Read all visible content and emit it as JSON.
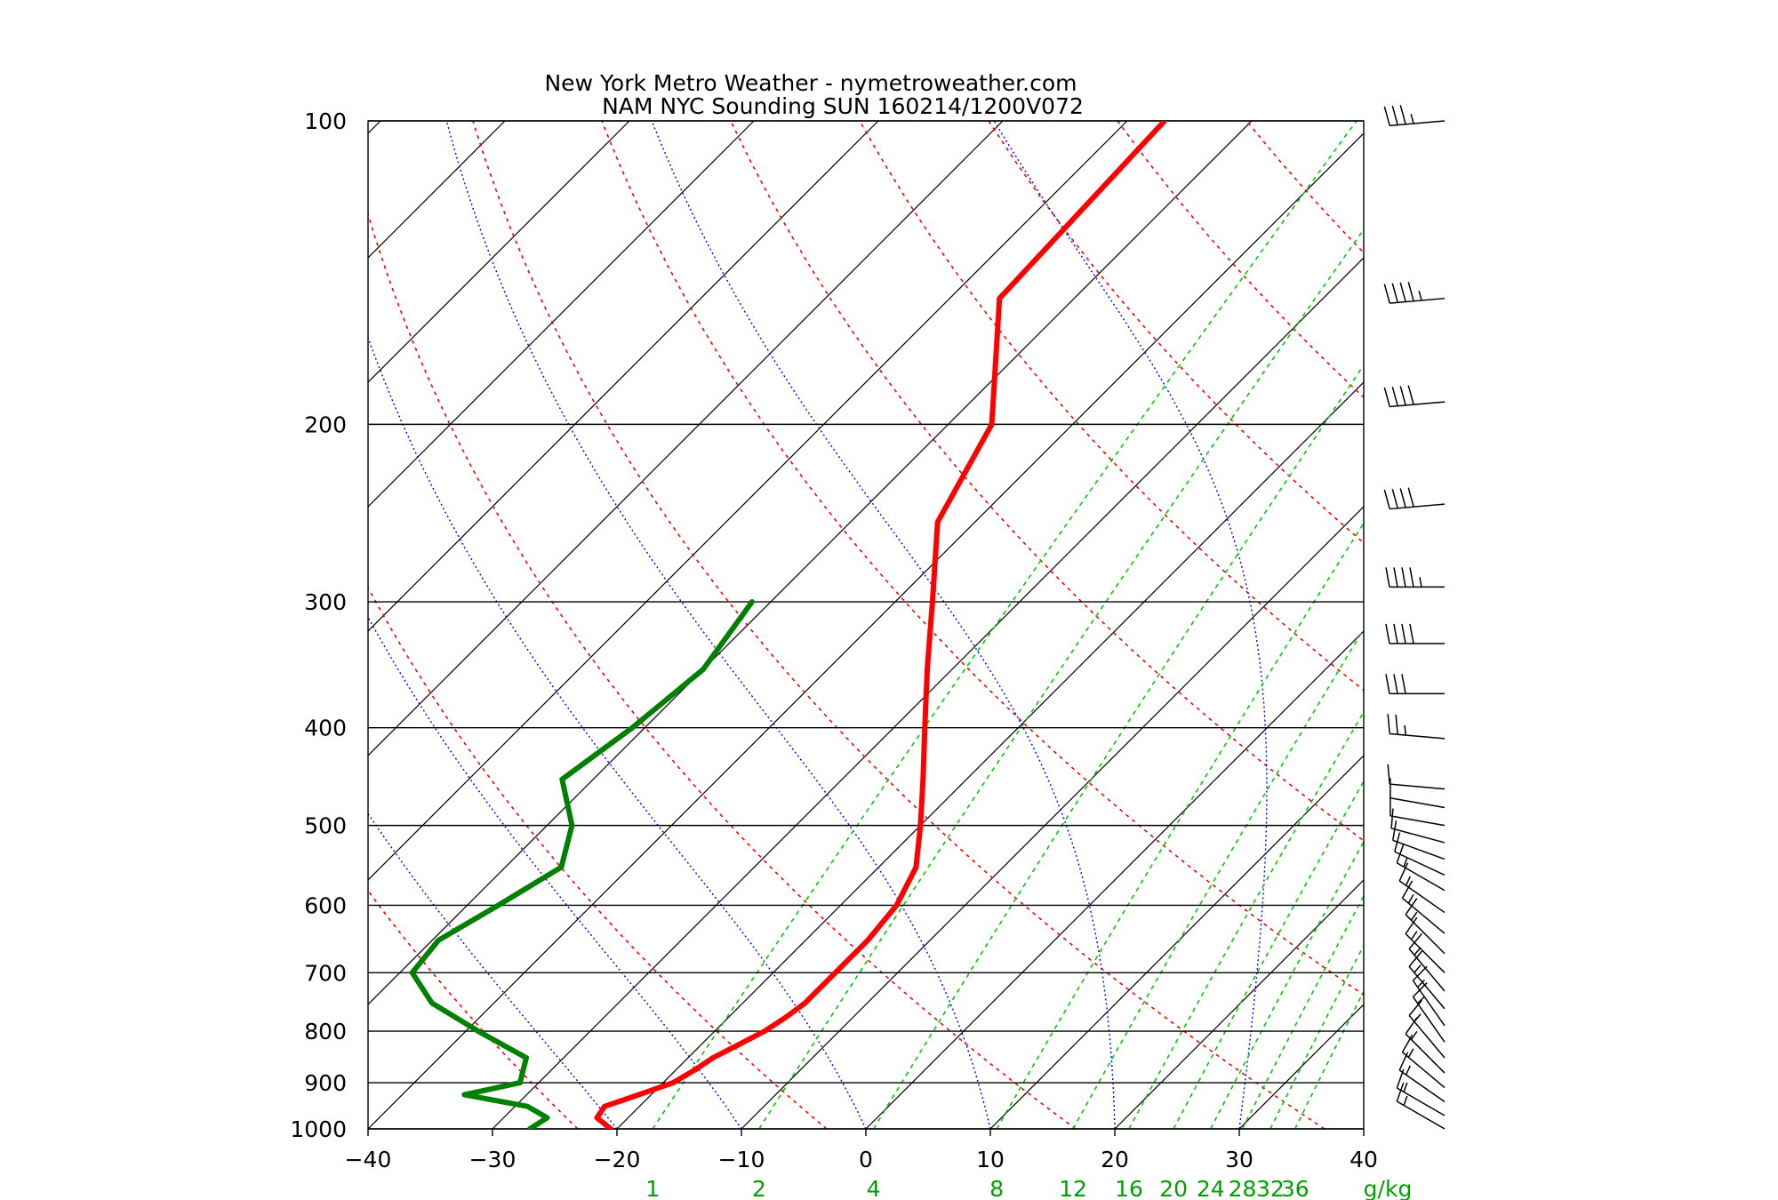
{
  "header": {
    "title": "New York Metro Weather - nymetroweather.com",
    "subtitle": "NAM NYC Sounding  SUN 160214/1200V072"
  },
  "chart_data": {
    "type": "line",
    "chart_kind": "skew-T log-P sounding",
    "x_axis": {
      "units": "°C",
      "range": [
        -40,
        40
      ],
      "ticks": [
        "-40",
        "-30",
        "-20",
        "-10",
        "0",
        "10",
        "20",
        "30",
        "40"
      ]
    },
    "y_axis": {
      "units": "hPa",
      "scale": "log",
      "range": [
        1000,
        100
      ],
      "ticks": [
        "100",
        "200",
        "300",
        "400",
        "500",
        "600",
        "700",
        "800",
        "900",
        "1000"
      ]
    },
    "mixing_ratio_axis": {
      "labels": [
        "1",
        "2",
        "4",
        "8",
        "12",
        "16",
        "20",
        "24",
        "28",
        "32",
        "36"
      ],
      "unit_label": "g/kg",
      "values": [
        1,
        2,
        4,
        8,
        12,
        16,
        20,
        24,
        28,
        32,
        36
      ]
    },
    "isotherm_spacing_c": 10,
    "dry_adiabats_k": [
      250,
      270,
      290,
      310,
      330,
      350,
      370,
      390,
      410,
      430,
      450
    ],
    "moist_adiabats_c": [
      -20,
      -10,
      0,
      10,
      20,
      30
    ],
    "series": [
      {
        "color": "#ff0000",
        "points": [
          {
            "p": 1000,
            "t": -20.5
          },
          {
            "p": 975,
            "t": -22.5
          },
          {
            "p": 950,
            "t": -22.8
          },
          {
            "p": 925,
            "t": -21.0
          },
          {
            "p": 900,
            "t": -19.2
          },
          {
            "p": 875,
            "t": -18.5
          },
          {
            "p": 850,
            "t": -18.0
          },
          {
            "p": 825,
            "t": -17.0
          },
          {
            "p": 800,
            "t": -16.0
          },
          {
            "p": 775,
            "t": -15.4
          },
          {
            "p": 750,
            "t": -15.0
          },
          {
            "p": 700,
            "t": -15.0
          },
          {
            "p": 650,
            "t": -15.0
          },
          {
            "p": 600,
            "t": -15.5
          },
          {
            "p": 550,
            "t": -17.0
          },
          {
            "p": 500,
            "t": -20.0
          },
          {
            "p": 450,
            "t": -23.5
          },
          {
            "p": 400,
            "t": -27.5
          },
          {
            "p": 350,
            "t": -32.0
          },
          {
            "p": 300,
            "t": -37.0
          },
          {
            "p": 250,
            "t": -43.0
          },
          {
            "p": 200,
            "t": -46.5
          },
          {
            "p": 150,
            "t": -56.0
          },
          {
            "p": 100,
            "t": -57.0
          }
        ]
      },
      {
        "color": "#008000",
        "points": [
          {
            "p": 1000,
            "t": -27.0
          },
          {
            "p": 975,
            "t": -26.5
          },
          {
            "p": 950,
            "t": -29.0
          },
          {
            "p": 925,
            "t": -35.0
          },
          {
            "p": 900,
            "t": -31.5
          },
          {
            "p": 850,
            "t": -33.0
          },
          {
            "p": 800,
            "t": -39.0
          },
          {
            "p": 750,
            "t": -45.0
          },
          {
            "p": 700,
            "t": -49.0
          },
          {
            "p": 650,
            "t": -49.5
          },
          {
            "p": 600,
            "t": -47.5
          },
          {
            "p": 550,
            "t": -45.5
          },
          {
            "p": 500,
            "t": -48.0
          },
          {
            "p": 450,
            "t": -52.5
          },
          {
            "p": 400,
            "t": -51.0
          },
          {
            "p": 350,
            "t": -50.0
          },
          {
            "p": 300,
            "t": -51.5
          }
        ]
      }
    ],
    "wind_barbs_kt": [
      {
        "p": 100,
        "dir": 265,
        "spd": 35
      },
      {
        "p": 150,
        "dir": 265,
        "spd": 45
      },
      {
        "p": 190,
        "dir": 265,
        "spd": 40
      },
      {
        "p": 240,
        "dir": 265,
        "spd": 40
      },
      {
        "p": 290,
        "dir": 270,
        "spd": 45
      },
      {
        "p": 330,
        "dir": 270,
        "spd": 40
      },
      {
        "p": 370,
        "dir": 270,
        "spd": 30
      },
      {
        "p": 410,
        "dir": 275,
        "spd": 25
      },
      {
        "p": 460,
        "dir": 275,
        "spd": 10
      },
      {
        "p": 480,
        "dir": 280,
        "spd": 10
      },
      {
        "p": 500,
        "dir": 280,
        "spd": 10
      },
      {
        "p": 520,
        "dir": 285,
        "spd": 10
      },
      {
        "p": 540,
        "dir": 290,
        "spd": 10
      },
      {
        "p": 560,
        "dir": 295,
        "spd": 10
      },
      {
        "p": 580,
        "dir": 300,
        "spd": 15
      },
      {
        "p": 610,
        "dir": 305,
        "spd": 15
      },
      {
        "p": 640,
        "dir": 310,
        "spd": 15
      },
      {
        "p": 670,
        "dir": 315,
        "spd": 15
      },
      {
        "p": 700,
        "dir": 315,
        "spd": 15
      },
      {
        "p": 730,
        "dir": 320,
        "spd": 15
      },
      {
        "p": 760,
        "dir": 320,
        "spd": 15
      },
      {
        "p": 790,
        "dir": 325,
        "spd": 15
      },
      {
        "p": 820,
        "dir": 325,
        "spd": 15
      },
      {
        "p": 850,
        "dir": 320,
        "spd": 15
      },
      {
        "p": 880,
        "dir": 315,
        "spd": 15
      },
      {
        "p": 910,
        "dir": 310,
        "spd": 15
      },
      {
        "p": 940,
        "dir": 305,
        "spd": 15
      },
      {
        "p": 970,
        "dir": 300,
        "spd": 15
      },
      {
        "p": 1000,
        "dir": 300,
        "spd": 15
      }
    ],
    "colors": {
      "temperature": "#ff0000",
      "dewpoint": "#008000",
      "dry_adiabat": "#ff0000",
      "moist_adiabat": "#0000ff",
      "mixing_ratio": "#00cc00",
      "isotherm": "#000000",
      "isobar": "#000000"
    },
    "legend": "none",
    "grid": true
  }
}
